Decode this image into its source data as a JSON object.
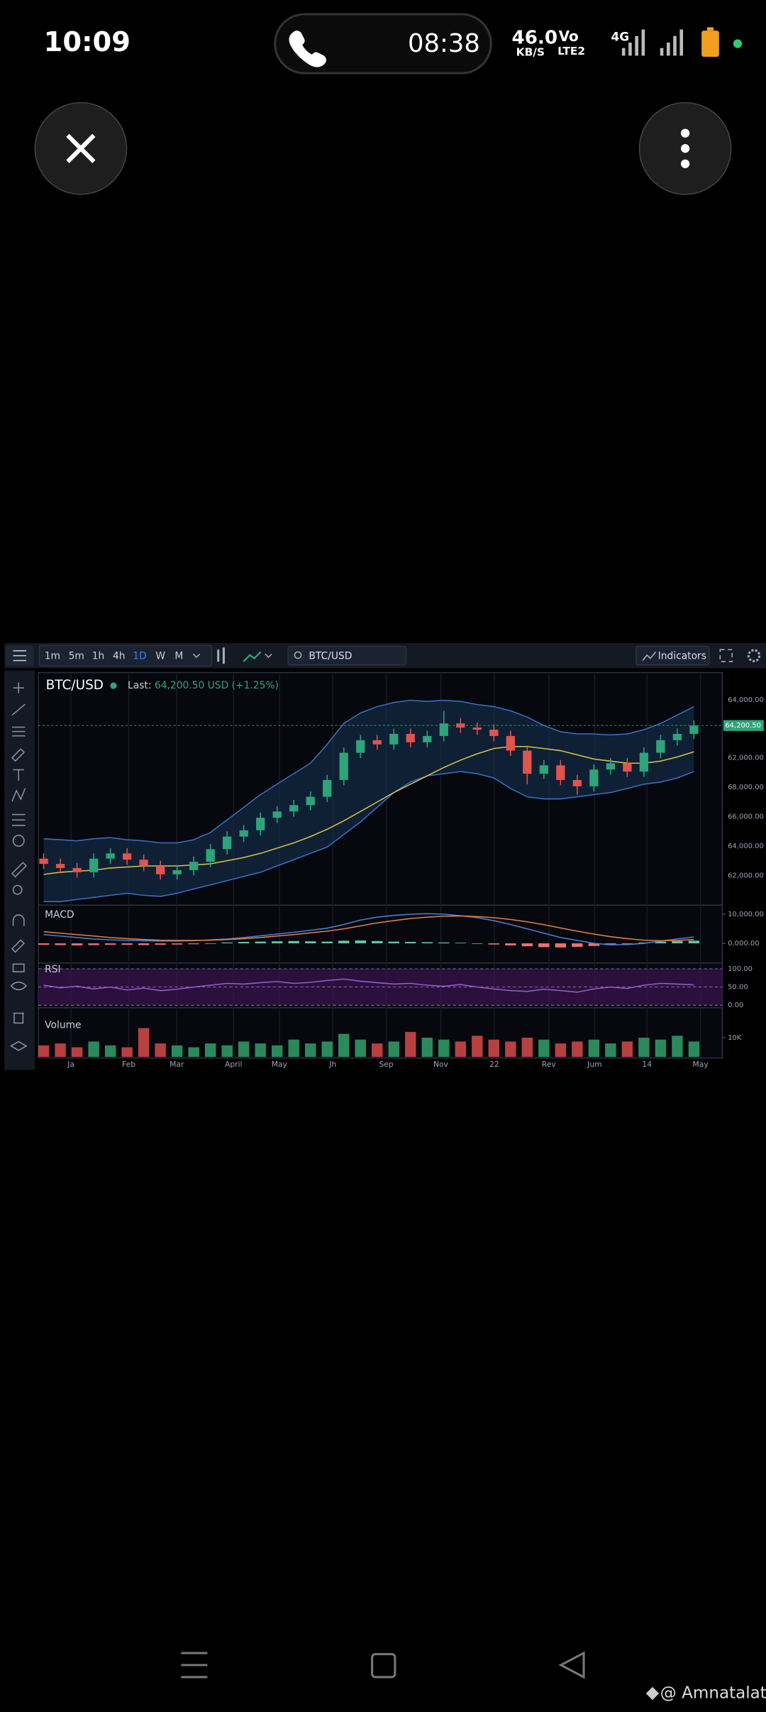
{
  "status_bar": {
    "time": "10:09",
    "call_timer": "08:38",
    "net_speed": "46.0",
    "net_unit": "KB/S",
    "volte": "Vo",
    "lte": "LTE2",
    "network": "4G"
  },
  "toolbar": {
    "timeframes": [
      "1m",
      "5m",
      "1h",
      "4h",
      "1D",
      "W",
      "M"
    ],
    "active_timeframe": 4,
    "search": "BTC/USD",
    "indicators": "Indicators"
  },
  "chart_data": {
    "type": "candlestick",
    "title": "BTC/USD",
    "last_label": "Last:",
    "last_value": "64,200.50 USD (+1.25%)",
    "price_tag": "64,200.50",
    "price_axis_labels": [
      "64,000.00",
      "62,000.00",
      "68,000.00",
      "66,000.00",
      "64,000.00",
      "62,000.00"
    ],
    "x_axis_labels": [
      "Ja",
      "Feb",
      "Mar",
      "April",
      "May",
      "Jh",
      "Sep",
      "Nov",
      "22",
      "Rev",
      "Jum",
      "14",
      "May"
    ],
    "ylim": [
      48000,
      68000
    ],
    "up_color": "#2fa37a",
    "down_color": "#e0534f",
    "open": [
      51500,
      51000,
      50600,
      50200,
      51500,
      52000,
      51400,
      50800,
      50000,
      50400,
      51200,
      52400,
      53600,
      54200,
      55400,
      56000,
      56600,
      57400,
      59000,
      61600,
      62800,
      62400,
      63400,
      62600,
      63200,
      64400,
      64000,
      63800,
      63200,
      61800,
      59600,
      60400,
      59000,
      58400,
      60000,
      60600,
      59800,
      61600,
      62800,
      63400
    ],
    "high": [
      52000,
      51500,
      51100,
      52000,
      52500,
      52500,
      51900,
      51300,
      50900,
      51700,
      52900,
      54100,
      54700,
      55900,
      56500,
      57100,
      57900,
      59500,
      62100,
      63300,
      63300,
      63900,
      63900,
      63700,
      65600,
      64900,
      64500,
      64300,
      63700,
      62300,
      60900,
      60900,
      59500,
      60500,
      61100,
      61100,
      62100,
      63300,
      63900,
      64700
    ],
    "low": [
      50500,
      50100,
      49700,
      49700,
      51000,
      50900,
      50300,
      49500,
      49500,
      49900,
      50700,
      51900,
      53100,
      53700,
      54900,
      55500,
      56100,
      56900,
      58500,
      61100,
      61900,
      61900,
      62100,
      62100,
      62700,
      63500,
      63300,
      62700,
      61300,
      58600,
      59100,
      58500,
      57600,
      57900,
      59500,
      59300,
      59300,
      61100,
      62300,
      62900
    ],
    "close": [
      51000,
      50600,
      50200,
      51500,
      52000,
      51400,
      50800,
      50000,
      50400,
      51200,
      52400,
      53600,
      54200,
      55400,
      56000,
      56600,
      57400,
      59000,
      61600,
      62800,
      62400,
      63400,
      62600,
      63200,
      64400,
      64000,
      63800,
      63200,
      61800,
      59600,
      60400,
      59000,
      58400,
      60000,
      60600,
      59800,
      61600,
      62800,
      63400,
      64200
    ],
    "bands": {
      "upper_color": "#3a6fc4",
      "middle_color": "#d9c24a",
      "fill": "#16304f",
      "upper": [
        53400,
        53300,
        53200,
        53400,
        53500,
        53300,
        53200,
        53000,
        53000,
        53300,
        54000,
        55200,
        56400,
        57600,
        58600,
        59600,
        60600,
        62400,
        64400,
        65400,
        66000,
        66400,
        66600,
        66500,
        66600,
        66500,
        66200,
        66000,
        65600,
        65000,
        64200,
        63600,
        63400,
        63400,
        63300,
        63400,
        63800,
        64400,
        65200,
        66000
      ],
      "middle": [
        50000,
        50200,
        50300,
        50400,
        50600,
        50700,
        50800,
        50800,
        50800,
        50900,
        51000,
        51300,
        51600,
        52000,
        52500,
        53000,
        53600,
        54300,
        55100,
        56000,
        56900,
        57800,
        58600,
        59400,
        60200,
        60900,
        61500,
        62000,
        62200,
        62200,
        62000,
        61800,
        61400,
        61000,
        60800,
        60600,
        60600,
        60800,
        61200,
        61700
      ],
      "lower": [
        47400,
        47400,
        47600,
        47800,
        48000,
        48200,
        48000,
        47900,
        48200,
        48600,
        49000,
        49400,
        49800,
        50200,
        50800,
        51400,
        52000,
        52600,
        53800,
        55000,
        56400,
        57800,
        58800,
        59400,
        59600,
        59800,
        59600,
        59200,
        58200,
        57400,
        57200,
        57200,
        57400,
        57600,
        57800,
        58200,
        58600,
        58800,
        59200,
        59800
      ]
    },
    "macd": {
      "title": "MACD",
      "ylim": [
        -6000,
        12000
      ],
      "yticks": [
        {
          "value": 10000,
          "label": "10,000.00"
        },
        {
          "value": 0,
          "label": "0,000.00"
        }
      ],
      "macd_color": "#4a7fd6",
      "signal_color": "#e0804a",
      "histogram": [
        -500,
        -600,
        -700,
        -600,
        -500,
        -500,
        -600,
        -500,
        -400,
        -300,
        -200,
        300,
        500,
        600,
        700,
        800,
        700,
        600,
        900,
        1000,
        800,
        600,
        500,
        400,
        300,
        200,
        -200,
        -400,
        -700,
        -1000,
        -1300,
        -1400,
        -1200,
        -900,
        -600,
        -300,
        300,
        600,
        800,
        900
      ],
      "macd": [
        3000,
        2500,
        2000,
        1500,
        1200,
        1000,
        900,
        800,
        800,
        900,
        1200,
        1500,
        2000,
        2600,
        3200,
        3800,
        4500,
        5200,
        6500,
        8000,
        9000,
        9600,
        10000,
        10200,
        10000,
        9500,
        8800,
        7800,
        6500,
        5000,
        3500,
        2000,
        1000,
        0,
        -500,
        -400,
        0,
        800,
        1500,
        2200
      ],
      "signal": [
        4000,
        3500,
        3000,
        2500,
        2000,
        1600,
        1300,
        1100,
        1000,
        1000,
        1100,
        1300,
        1600,
        2000,
        2500,
        3000,
        3600,
        4200,
        5000,
        6000,
        7000,
        7800,
        8500,
        9000,
        9300,
        9400,
        9200,
        8800,
        8200,
        7400,
        6400,
        5300,
        4200,
        3200,
        2300,
        1600,
        1100,
        900,
        1000,
        1300
      ]
    },
    "rsi": {
      "title": "RSI",
      "ylim": [
        -10,
        110
      ],
      "yticks": [
        {
          "value": 100,
          "label": "100.00"
        },
        {
          "value": 50,
          "label": "50.00"
        },
        {
          "value": 0,
          "label": "0.00"
        }
      ],
      "color": "#9b59d0",
      "values": [
        55,
        48,
        52,
        45,
        50,
        42,
        47,
        40,
        44,
        50,
        55,
        60,
        58,
        62,
        65,
        60,
        63,
        68,
        72,
        66,
        62,
        58,
        60,
        55,
        52,
        57,
        50,
        45,
        40,
        38,
        44,
        40,
        36,
        45,
        50,
        46,
        55,
        60,
        58,
        56
      ]
    },
    "volume": {
      "title": "Volume",
      "ylim": [
        0,
        25000
      ],
      "yticks": [
        {
          "value": 10000,
          "label": "10K"
        }
      ],
      "values": [
        6000,
        7000,
        5000,
        8000,
        6000,
        5000,
        15000,
        7000,
        6000,
        5000,
        7000,
        6000,
        8000,
        7000,
        6000,
        9000,
        7000,
        8000,
        12000,
        9000,
        7000,
        8000,
        13000,
        10000,
        9000,
        8000,
        11000,
        9000,
        8000,
        10000,
        9000,
        7000,
        8000,
        9000,
        7000,
        8000,
        10000,
        9000,
        11000,
        8000
      ]
    }
  },
  "watermark": "@ Amnatalat"
}
